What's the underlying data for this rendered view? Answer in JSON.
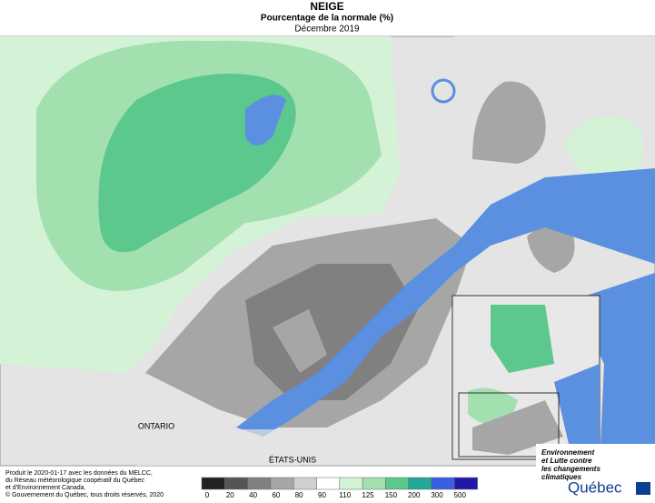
{
  "header": {
    "title": "NEIGE",
    "subtitle": "Pourcentage de la normale (%)",
    "period": "Décembre 2019"
  },
  "map_labels": [
    "ONTARIO",
    "ÉTATS-UNIS"
  ],
  "legend": {
    "ticks": [
      0,
      20,
      40,
      60,
      80,
      90,
      110,
      125,
      150,
      200,
      300,
      500
    ],
    "colors": [
      "#222222",
      "#555555",
      "#808080",
      "#a6a6a6",
      "#d0d0d0",
      "#ffffff",
      "#d4f2d6",
      "#a2e0b0",
      "#5cc88e",
      "#22a894",
      "#3a5fe0",
      "#2018a8"
    ]
  },
  "footer": {
    "lines": [
      "Produit le 2020-01-17 avec les données du MELCC,",
      "du Réseau météorologique coopératif du Québec",
      "et d'Environnement Canada."
    ],
    "copyright": "© Gouvernement du Québec, tous droits réservés, 2020"
  },
  "logo": {
    "lines": [
      "Environnement",
      "et Lutte contre",
      "les changements",
      "climatiques"
    ],
    "brand": "Québec"
  }
}
